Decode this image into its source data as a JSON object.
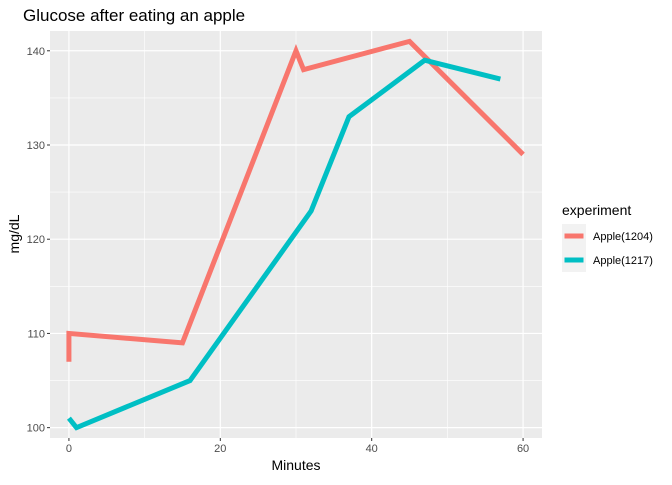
{
  "chart_data": {
    "type": "line",
    "title": "Glucose after eating an apple",
    "xlabel": "Minutes",
    "ylabel": "mg/dL",
    "xlim": [
      -2.5,
      62.5
    ],
    "ylim": [
      98.9,
      142.1
    ],
    "x_ticks": [
      0,
      20,
      40,
      60
    ],
    "y_ticks": [
      100,
      110,
      120,
      130,
      140
    ],
    "grid": true,
    "legend": {
      "title": "experiment",
      "position": "right"
    },
    "series": [
      {
        "name": "Apple(1204)",
        "color": "#F8766D",
        "points": [
          [
            0,
            107
          ],
          [
            0,
            110
          ],
          [
            15,
            109
          ],
          [
            30,
            140
          ],
          [
            31,
            138
          ],
          [
            45,
            141
          ],
          [
            60,
            129
          ]
        ]
      },
      {
        "name": "Apple(1217)",
        "color": "#00BFC4",
        "points": [
          [
            0,
            101
          ],
          [
            1,
            100
          ],
          [
            16,
            105
          ],
          [
            32,
            123
          ],
          [
            37,
            133
          ],
          [
            47,
            139
          ],
          [
            57,
            137
          ]
        ]
      }
    ]
  }
}
